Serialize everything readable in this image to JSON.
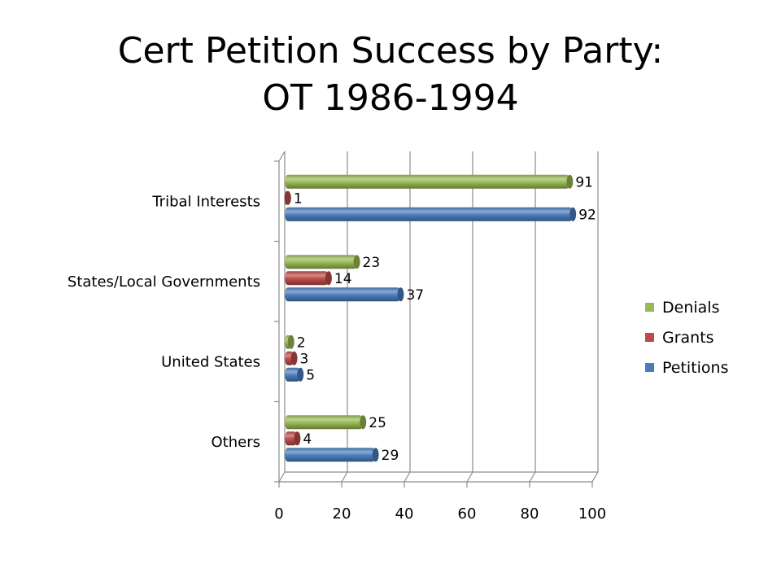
{
  "title": {
    "line1": "Cert Petition Success by Party:",
    "line2": "OT 1986-1994"
  },
  "chart_data": {
    "type": "bar",
    "orientation": "horizontal",
    "title": "Cert Petition Success by Party: OT 1986-1994",
    "categories": [
      "Others",
      "United States",
      "States/Local Governments",
      "Tribal Interests"
    ],
    "series": [
      {
        "name": "Petitions",
        "color": "#4a7ebb",
        "values": [
          29,
          5,
          37,
          92
        ]
      },
      {
        "name": "Grants",
        "color": "#be4b48",
        "values": [
          4,
          3,
          14,
          1
        ]
      },
      {
        "name": "Denials",
        "color": "#98b954",
        "values": [
          25,
          2,
          23,
          91
        ]
      }
    ],
    "xlim": [
      0,
      100
    ],
    "xticks": [
      "0",
      "20",
      "40",
      "60",
      "80",
      "100"
    ],
    "legend_order": [
      "Denials",
      "Grants",
      "Petitions"
    ],
    "legend_position": "right",
    "grid": true
  }
}
